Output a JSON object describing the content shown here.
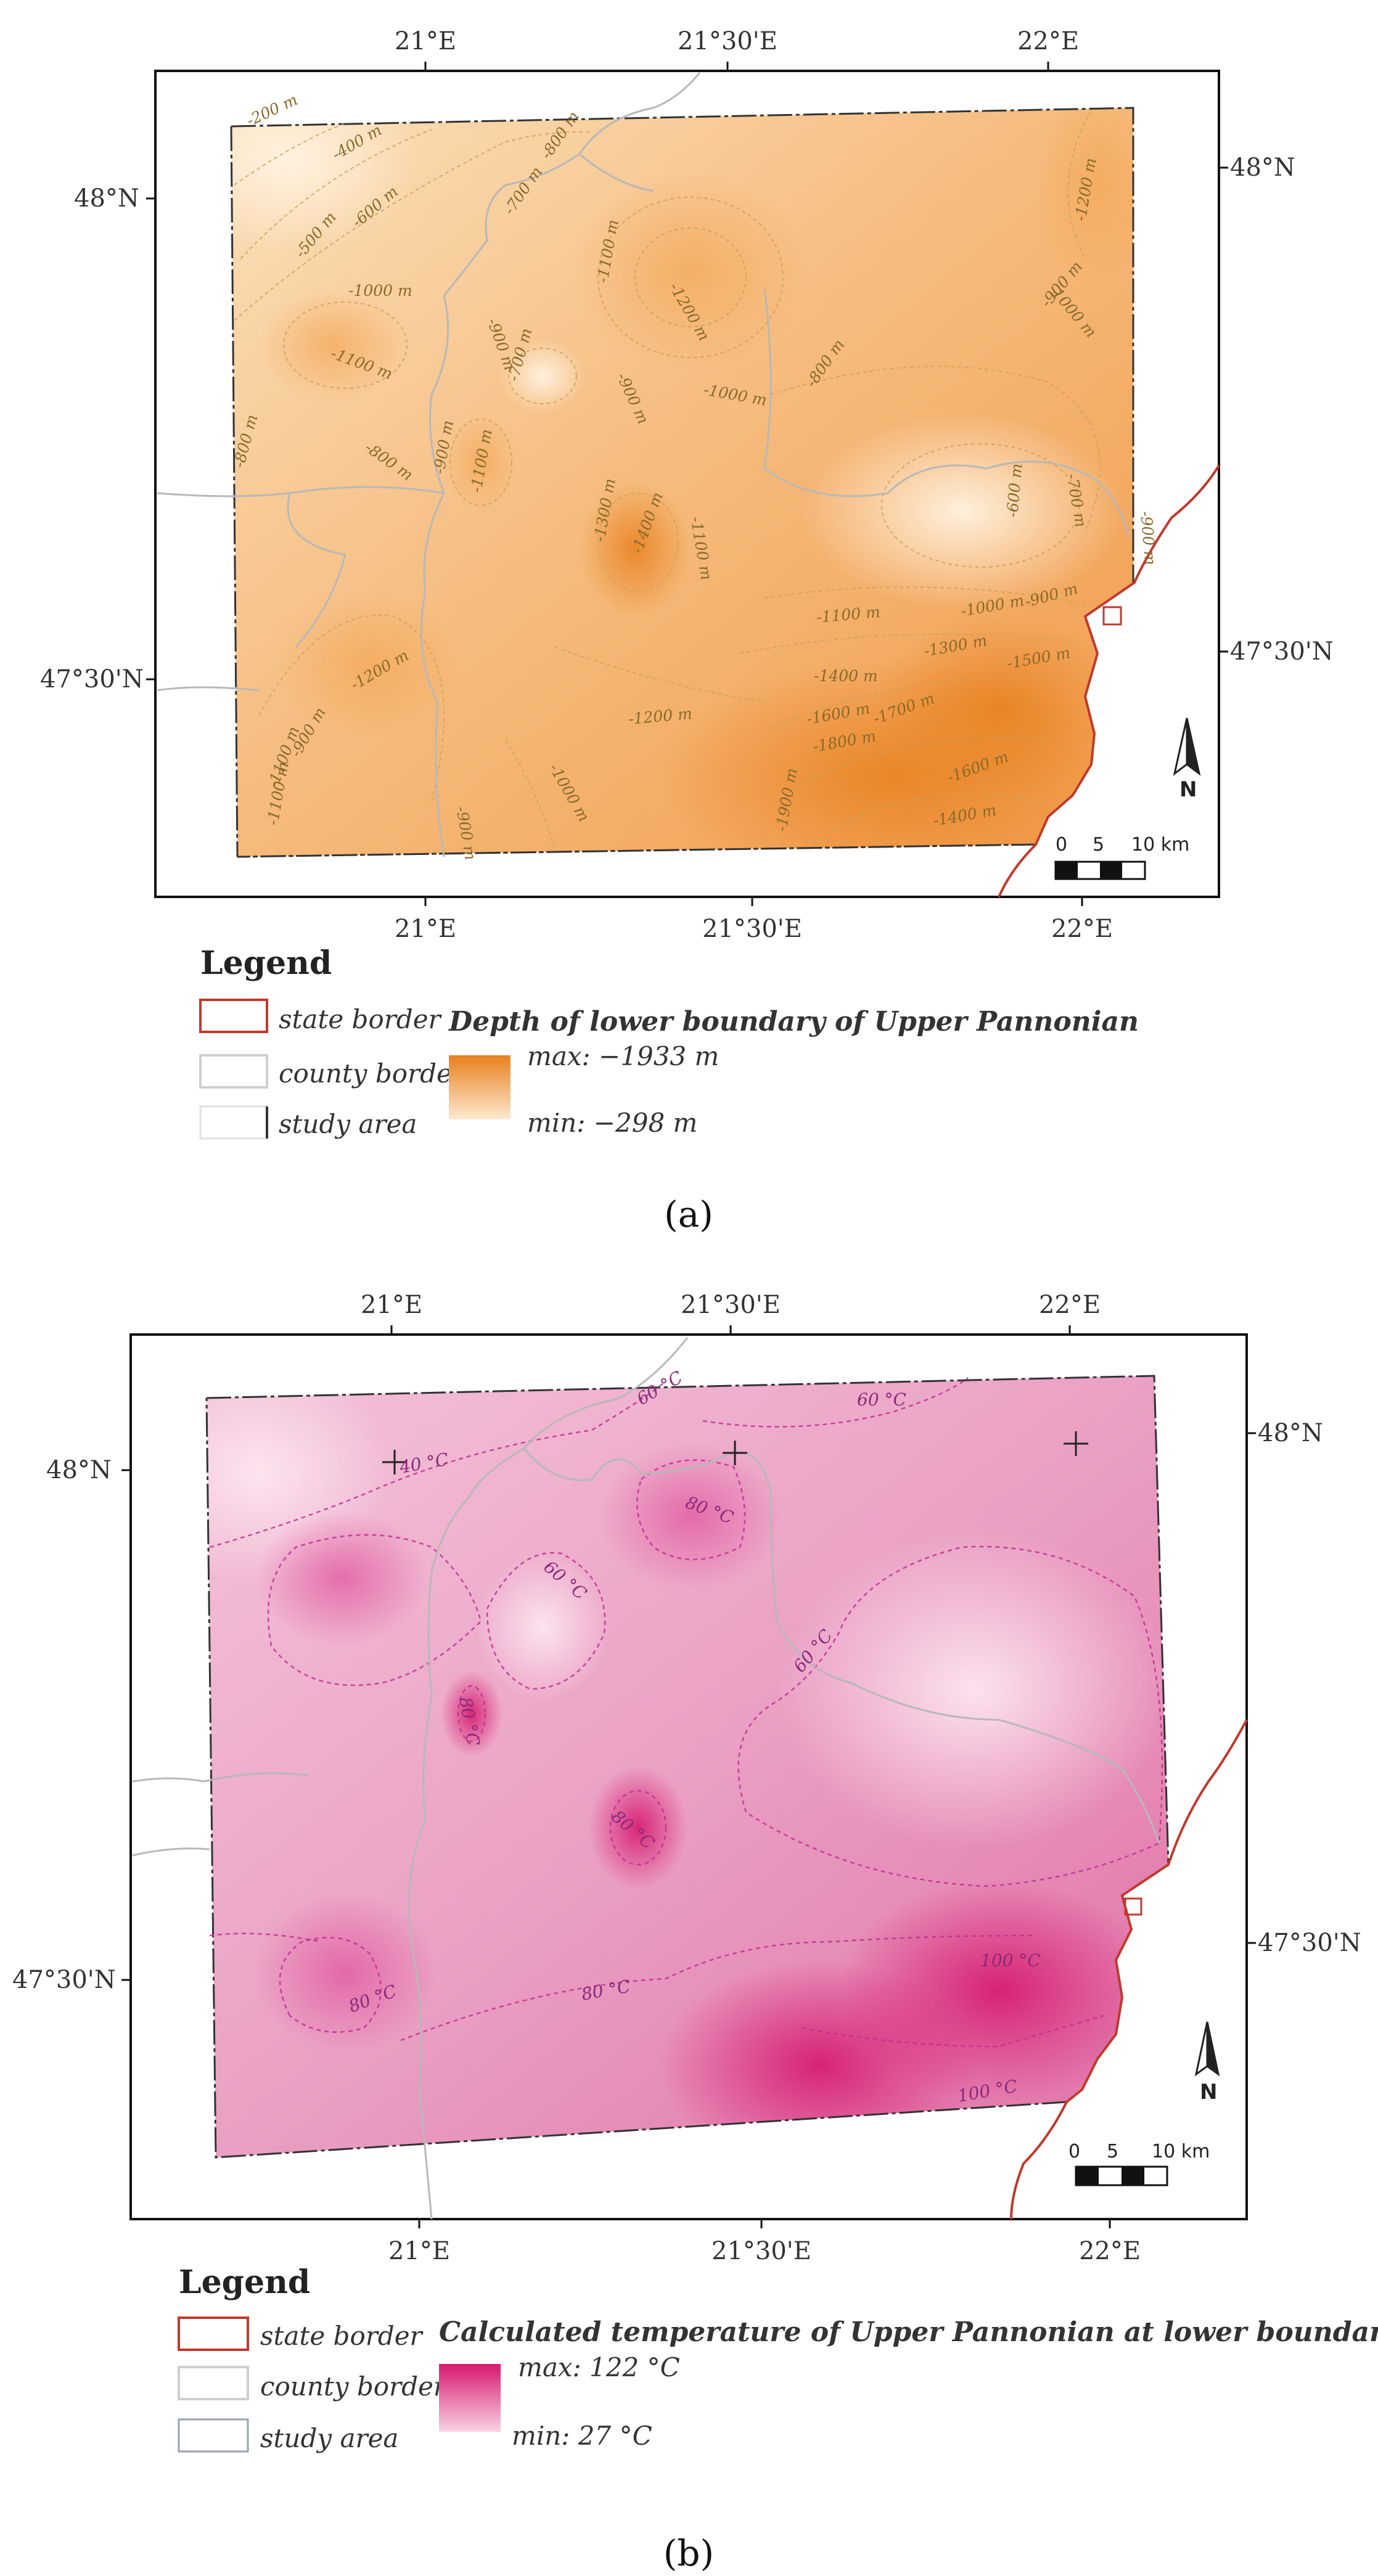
{
  "colors": {
    "depth_max": "#e8801e",
    "depth_min": "#fde9cf",
    "temp_max": "#d6186e",
    "temp_min": "#f8d2e4",
    "state_border": "#c0392b",
    "county_border": "#b8b8b8",
    "study_area": "#333333"
  },
  "panel_a": {
    "top_ticks": [
      "21°E",
      "21°30'E",
      "22°E"
    ],
    "bottom_ticks": [
      "21°E",
      "21°30'E",
      "22°E"
    ],
    "left_ticks": [
      "48°N",
      "47°30'N"
    ],
    "right_ticks": [
      "48°N",
      "47°30'N"
    ],
    "contour_labels": [
      "-200 m",
      "-400 m",
      "-500 m",
      "-600 m",
      "-700 m",
      "-800 m",
      "-1100 m",
      "-1200 m",
      "-1200 m",
      "-1000 m",
      "-900 m",
      "-1100 m",
      "-700 m",
      "-900 m",
      "-1000 m",
      "-800 m",
      "-800 m",
      "-900 m",
      "-1000 m",
      "-800 m",
      "-900 m",
      "-1100 m",
      "-1300 m",
      "-1400 m",
      "-1100 m",
      "-700 m",
      "-600 m",
      "-900 m",
      "-1000 m",
      "-900 m",
      "-1100 m",
      "-1500 m",
      "-1300 m",
      "-1400 m",
      "-1700 m",
      "-1600 m",
      "-1800 m",
      "-1200 m",
      "-1200 m",
      "-900 m",
      "-1100 m",
      "-1100 m",
      "-1000 m",
      "-900 m",
      "-1600 m",
      "-1400 m",
      "-1900 m"
    ],
    "north": "N",
    "scale": {
      "zero": "0",
      "five": "5",
      "ten": "10 km"
    },
    "legend": {
      "title": "Legend",
      "state_border": "state border",
      "county_border": "county border",
      "study_area": "study area",
      "ramp_title": "Depth of lower boundary of Upper Pannonian",
      "max": "max: −1933 m",
      "min": "min: −298 m"
    },
    "caption": "(a)"
  },
  "panel_b": {
    "top_ticks": [
      "21°E",
      "21°30'E",
      "22°E"
    ],
    "bottom_ticks": [
      "21°E",
      "21°30'E",
      "22°E"
    ],
    "left_ticks": [
      "48°N",
      "47°30'N"
    ],
    "right_ticks": [
      "48°N",
      "47°30'N"
    ],
    "contour_labels": [
      "40 °C",
      "60 °C",
      "60 °C",
      "80 °C",
      "60 °C",
      "60 °C",
      "80 °C",
      "80 °C",
      "80 °C",
      "80 °C",
      "100 °C",
      "100 °C"
    ],
    "north": "N",
    "scale": {
      "zero": "0",
      "five": "5",
      "ten": "10 km"
    },
    "legend": {
      "title": "Legend",
      "state_border": "state border",
      "county_border": "county border",
      "study_area": "study area",
      "ramp_title": "Calculated temperature of Upper Pannonian at lower boundary",
      "max": "max: 122 °C",
      "min": "min: 27 °C"
    },
    "caption": "(b)"
  }
}
